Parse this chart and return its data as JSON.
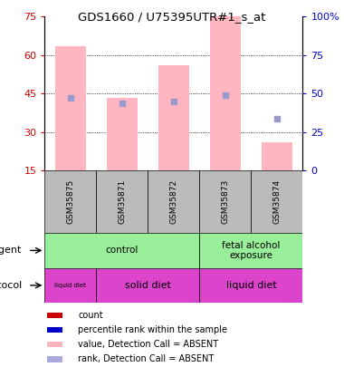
{
  "title": "GDS1660 / U75395UTR#1_s_at",
  "samples": [
    "GSM35875",
    "GSM35871",
    "GSM35872",
    "GSM35873",
    "GSM35874"
  ],
  "bar_values": [
    63.5,
    43.5,
    56.0,
    75.0,
    26.0
  ],
  "rank_values": [
    47.0,
    43.5,
    45.0,
    49.0,
    33.5
  ],
  "bar_color": "#FFB6C1",
  "rank_color": "#9999CC",
  "ylim_left": [
    15,
    75
  ],
  "ylim_right": [
    0,
    100
  ],
  "yticks_left": [
    15,
    30,
    45,
    60,
    75
  ],
  "yticks_right": [
    0,
    25,
    50,
    75,
    100
  ],
  "ytick_labels_right": [
    "0",
    "25",
    "50",
    "75",
    "100%"
  ],
  "left_axis_color": "#CC0000",
  "right_axis_color": "#0000CC",
  "agent_groups": [
    {
      "label": "control",
      "start": 0,
      "end": 3,
      "color": "#99EE99"
    },
    {
      "label": "fetal alcohol\nexposure",
      "start": 3,
      "end": 5,
      "color": "#99EE99"
    }
  ],
  "protocol_groups": [
    {
      "label": "liquid diet",
      "start": 0,
      "end": 1,
      "color": "#DD44CC",
      "fontsize": 5
    },
    {
      "label": "solid diet",
      "start": 1,
      "end": 3,
      "color": "#DD44CC",
      "fontsize": 8
    },
    {
      "label": "liquid diet",
      "start": 3,
      "end": 5,
      "color": "#DD44CC",
      "fontsize": 8
    }
  ],
  "legend_items": [
    {
      "color": "#CC0000",
      "label": "count"
    },
    {
      "color": "#0000CC",
      "label": "percentile rank within the sample"
    },
    {
      "color": "#FFB6C1",
      "label": "value, Detection Call = ABSENT"
    },
    {
      "color": "#AAAADD",
      "label": "rank, Detection Call = ABSENT"
    }
  ],
  "sample_box_color": "#BBBBBB",
  "n_samples": 5
}
